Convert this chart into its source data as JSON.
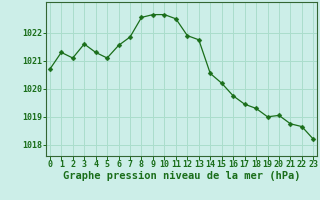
{
  "x": [
    0,
    1,
    2,
    3,
    4,
    5,
    6,
    7,
    8,
    9,
    10,
    11,
    12,
    13,
    14,
    15,
    16,
    17,
    18,
    19,
    20,
    21,
    22,
    23
  ],
  "y": [
    1020.7,
    1021.3,
    1021.1,
    1021.6,
    1021.3,
    1021.1,
    1021.55,
    1021.85,
    1022.55,
    1022.65,
    1022.65,
    1022.5,
    1021.9,
    1021.75,
    1020.55,
    1020.2,
    1019.75,
    1019.45,
    1019.3,
    1019.0,
    1019.05,
    1018.75,
    1018.65,
    1018.2
  ],
  "line_color": "#1a6e1a",
  "marker": "D",
  "marker_size": 2.5,
  "bg_color": "#cceee8",
  "grid_color": "#aaddcc",
  "title": "Graphe pression niveau de la mer (hPa)",
  "title_color": "#1a6e1a",
  "title_fontsize": 7.5,
  "xlabel_ticks": [
    "0",
    "1",
    "2",
    "3",
    "4",
    "5",
    "6",
    "7",
    "8",
    "9",
    "10",
    "11",
    "12",
    "13",
    "14",
    "15",
    "16",
    "17",
    "18",
    "19",
    "20",
    "21",
    "22",
    "23"
  ],
  "yticks": [
    1018,
    1019,
    1020,
    1021,
    1022
  ],
  "ylim": [
    1017.6,
    1023.1
  ],
  "xlim": [
    -0.3,
    23.3
  ],
  "tick_color": "#1a6e1a",
  "tick_fontsize": 6.0,
  "spine_color": "#336633"
}
